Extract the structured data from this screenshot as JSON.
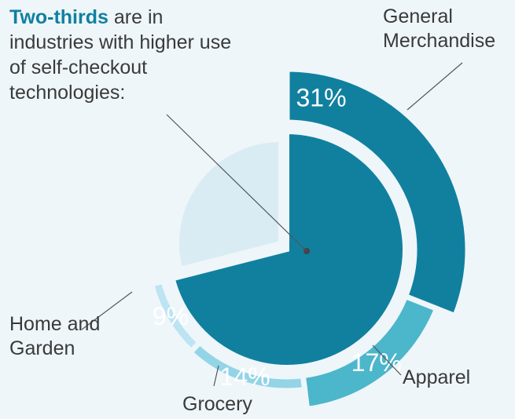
{
  "chart_data": {
    "type": "donut",
    "annotation": {
      "bold": "Two-thirds",
      "text": "are in industries with higher use of self-checkout technologies:"
    },
    "categories": [
      "General Merchandise",
      "Apparel",
      "Grocery",
      "Home and Garden"
    ],
    "values": [
      31,
      17,
      14,
      9
    ],
    "value_labels": [
      "31%",
      "17%",
      "14%",
      "9%"
    ],
    "colors": [
      "#11809f",
      "#4cb6cb",
      "#93d4e6",
      "#bce4f2"
    ],
    "inner_colors": [
      "#11809f",
      "#d9ecf4"
    ]
  }
}
